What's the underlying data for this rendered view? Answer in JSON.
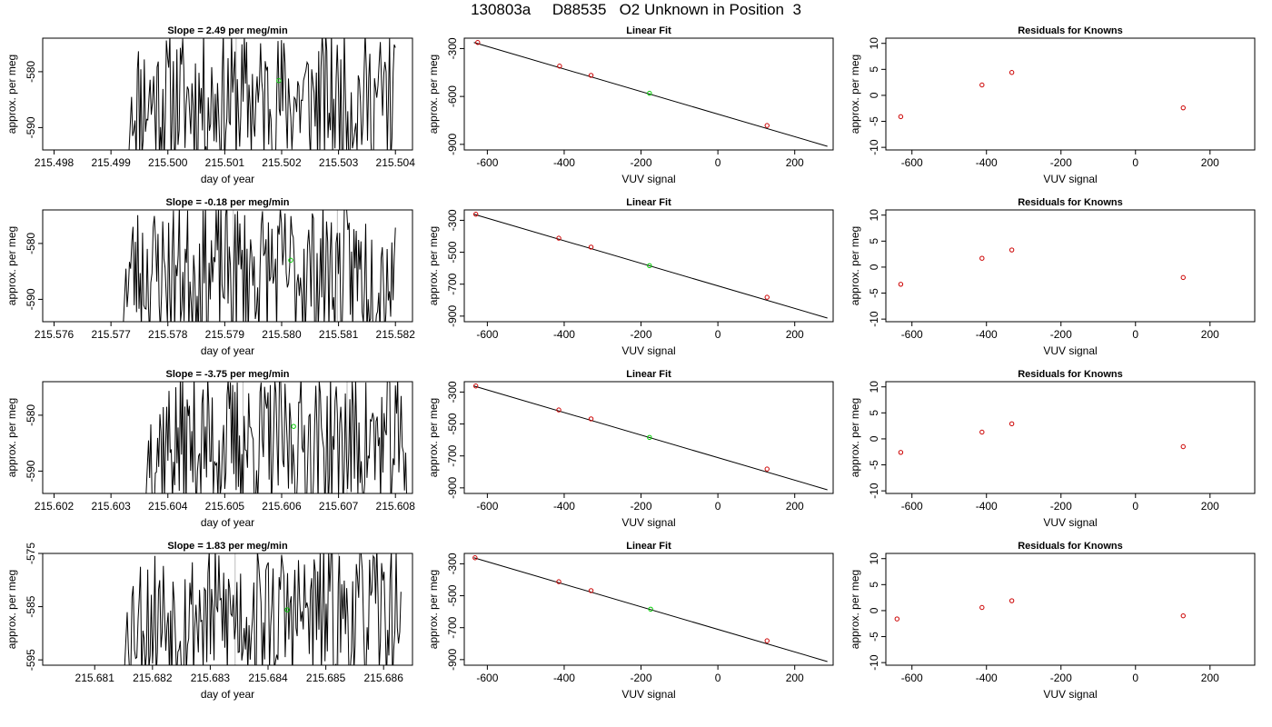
{
  "figure": {
    "title": "130803a     D88535   O2 Unknown in Position  3"
  },
  "colors": {
    "series": "#000000",
    "known_points": "#cc0000",
    "unknown_point": "#00cc00",
    "marker_lines": "#bbbbbb"
  },
  "chart_data": [
    {
      "type": "line",
      "title": "Slope =  2.49  per meg/min",
      "xlabel": "day of year",
      "ylabel": "approx. per meg",
      "xlim": [
        215.4978,
        215.5043
      ],
      "ylim": [
        -594,
        -574
      ],
      "x_ticks": [
        "215.498",
        "215.499",
        "215.500",
        "215.501",
        "215.502",
        "215.503",
        "215.504"
      ],
      "x_tick_values": [
        215.498,
        215.499,
        215.5,
        215.501,
        215.502,
        215.503,
        215.504
      ],
      "y_ticks": [
        "-590",
        "-580"
      ],
      "y_tick_values": [
        -590,
        -580
      ],
      "trace_x_range": [
        215.4993,
        215.504
      ],
      "marker_lines_x": [
        215.5012
      ],
      "unknown_point": [
        215.50195,
        -581.6
      ],
      "seed": 11
    },
    {
      "type": "scatter",
      "title": "Linear Fit",
      "xlabel": "VUV signal",
      "ylabel": "approx. per meg",
      "xlim": [
        -660,
        300
      ],
      "ylim": [
        -935,
        -235
      ],
      "x_ticks": [
        "-600",
        "-400",
        "-200",
        "0",
        "200"
      ],
      "x_tick_values": [
        -600,
        -400,
        -200,
        0,
        200
      ],
      "y_ticks": [
        "-900",
        "-600",
        "-300"
      ],
      "y_tick_values": [
        -900,
        -600,
        -300
      ],
      "fit_line": [
        [
          -635,
          -262
        ],
        [
          285,
          -912
        ]
      ],
      "knowns": [
        [
          -625,
          -262
        ],
        [
          -412,
          -410
        ],
        [
          -330,
          -468
        ],
        [
          128,
          -782
        ]
      ],
      "unknown": [
        -178,
        -580
      ]
    },
    {
      "type": "scatter",
      "title": "Residuals for Knowns",
      "xlabel": "VUV signal",
      "ylabel": "approx. per meg",
      "xlim": [
        -670,
        320
      ],
      "ylim": [
        -10.5,
        11
      ],
      "x_ticks": [
        "-600",
        "-400",
        "-200",
        "0",
        "200"
      ],
      "x_tick_values": [
        -600,
        -400,
        -200,
        0,
        200
      ],
      "y_ticks": [
        "-10",
        "-5",
        "0",
        "5",
        "10"
      ],
      "y_tick_values": [
        -10,
        -5,
        0,
        5,
        10
      ],
      "points": [
        [
          -630,
          -4.1
        ],
        [
          -412,
          2.0
        ],
        [
          -332,
          4.4
        ],
        [
          128,
          -2.4
        ]
      ]
    },
    {
      "type": "line",
      "title": "Slope =  -0.18  per meg/min",
      "xlabel": "day of year",
      "ylabel": "approx. per meg",
      "xlim": [
        215.5758,
        215.5823
      ],
      "ylim": [
        -594,
        -574
      ],
      "x_ticks": [
        "215.576",
        "215.577",
        "215.578",
        "215.579",
        "215.580",
        "215.581",
        "215.582"
      ],
      "x_tick_values": [
        215.576,
        215.577,
        215.578,
        215.579,
        215.58,
        215.581,
        215.582
      ],
      "y_ticks": [
        "-590",
        "-580"
      ],
      "y_tick_values": [
        -590,
        -580
      ],
      "trace_x_range": [
        215.5772,
        215.582
      ],
      "marker_lines_x": [
        215.57915,
        215.58098
      ],
      "unknown_point": [
        215.58016,
        -583.0
      ],
      "seed": 23
    },
    {
      "type": "scatter",
      "title": "Linear Fit",
      "xlabel": "VUV signal",
      "ylabel": "approx. per meg",
      "xlim": [
        -660,
        300
      ],
      "ylim": [
        -935,
        -235
      ],
      "x_ticks": [
        "-600",
        "-400",
        "-200",
        "0",
        "200"
      ],
      "x_tick_values": [
        -600,
        -400,
        -200,
        0,
        200
      ],
      "y_ticks": [
        "-900",
        "-700",
        "-500",
        "-300"
      ],
      "y_tick_values": [
        -900,
        -700,
        -500,
        -300
      ],
      "fit_line": [
        [
          -635,
          -262
        ],
        [
          285,
          -912
        ]
      ],
      "knowns": [
        [
          -630,
          -262
        ],
        [
          -414,
          -412
        ],
        [
          -330,
          -468
        ],
        [
          128,
          -782
        ]
      ],
      "unknown": [
        -178,
        -584
      ]
    },
    {
      "type": "scatter",
      "title": "Residuals for Knowns",
      "xlabel": "VUV signal",
      "ylabel": "approx. per meg",
      "xlim": [
        -670,
        320
      ],
      "ylim": [
        -10.5,
        11
      ],
      "x_ticks": [
        "-600",
        "-400",
        "-200",
        "0",
        "200"
      ],
      "x_tick_values": [
        -600,
        -400,
        -200,
        0,
        200
      ],
      "y_ticks": [
        "-10",
        "-5",
        "0",
        "5",
        "10"
      ],
      "y_tick_values": [
        -10,
        -5,
        0,
        5,
        10
      ],
      "points": [
        [
          -630,
          -3.3
        ],
        [
          -412,
          1.7
        ],
        [
          -332,
          3.3
        ],
        [
          128,
          -2.0
        ]
      ]
    },
    {
      "type": "line",
      "title": "Slope =  -3.75  per meg/min",
      "xlabel": "day of year",
      "ylabel": "approx. per meg",
      "xlim": [
        215.6018,
        215.6083
      ],
      "ylim": [
        -594,
        -574
      ],
      "x_ticks": [
        "215.602",
        "215.603",
        "215.604",
        "215.605",
        "215.606",
        "215.607",
        "215.608"
      ],
      "x_tick_values": [
        215.602,
        215.603,
        215.604,
        215.605,
        215.606,
        215.607,
        215.608
      ],
      "y_ticks": [
        "-590",
        "-580"
      ],
      "y_tick_values": [
        -590,
        -580
      ],
      "trace_x_range": [
        215.6036,
        215.6082
      ],
      "marker_lines_x": [
        215.60532,
        215.60715
      ],
      "unknown_point": [
        215.60621,
        -582.0
      ],
      "seed": 37
    },
    {
      "type": "scatter",
      "title": "Linear Fit",
      "xlabel": "VUV signal",
      "ylabel": "approx. per meg",
      "xlim": [
        -660,
        300
      ],
      "ylim": [
        -935,
        -235
      ],
      "x_ticks": [
        "-600",
        "-400",
        "-200",
        "0",
        "200"
      ],
      "x_tick_values": [
        -600,
        -400,
        -200,
        0,
        200
      ],
      "y_ticks": [
        "-900",
        "-700",
        "-500",
        "-300"
      ],
      "y_tick_values": [
        -900,
        -700,
        -500,
        -300
      ],
      "fit_line": [
        [
          -635,
          -262
        ],
        [
          285,
          -912
        ]
      ],
      "knowns": [
        [
          -630,
          -262
        ],
        [
          -414,
          -412
        ],
        [
          -330,
          -468
        ],
        [
          128,
          -782
        ]
      ],
      "unknown": [
        -178,
        -584
      ]
    },
    {
      "type": "scatter",
      "title": "Residuals for Knowns",
      "xlabel": "VUV signal",
      "ylabel": "approx. per meg",
      "xlim": [
        -670,
        320
      ],
      "ylim": [
        -10.5,
        11
      ],
      "x_ticks": [
        "-600",
        "-400",
        "-200",
        "0",
        "200"
      ],
      "x_tick_values": [
        -600,
        -400,
        -200,
        0,
        200
      ],
      "y_ticks": [
        "-10",
        "-5",
        "0",
        "5",
        "10"
      ],
      "y_tick_values": [
        -10,
        -5,
        0,
        5,
        10
      ],
      "points": [
        [
          -630,
          -2.6
        ],
        [
          -412,
          1.3
        ],
        [
          -332,
          2.9
        ],
        [
          128,
          -1.5
        ]
      ]
    },
    {
      "type": "line",
      "title": "Slope =  1.83  per meg/min",
      "xlabel": "day of year",
      "ylabel": "approx. per meg",
      "xlim": [
        215.6801,
        215.6865
      ],
      "ylim": [
        -596,
        -575
      ],
      "x_ticks": [
        "215.681",
        "215.682",
        "215.683",
        "215.684",
        "215.685",
        "215.686"
      ],
      "x_tick_values": [
        215.681,
        215.682,
        215.683,
        215.684,
        215.685,
        215.686
      ],
      "y_ticks": [
        "-595",
        "-585",
        "-575"
      ],
      "y_tick_values": [
        -595,
        -585,
        -575
      ],
      "trace_x_range": [
        215.6815,
        215.6863
      ],
      "marker_lines_x": [
        215.68343,
        215.68522
      ],
      "unknown_point": [
        215.68433,
        -585.6
      ],
      "seed": 53
    },
    {
      "type": "scatter",
      "title": "Linear Fit",
      "xlabel": "VUV signal",
      "ylabel": "approx. per meg",
      "xlim": [
        -660,
        300
      ],
      "ylim": [
        -935,
        -235
      ],
      "x_ticks": [
        "-600",
        "-400",
        "-200",
        "0",
        "200"
      ],
      "x_tick_values": [
        -600,
        -400,
        -200,
        0,
        200
      ],
      "y_ticks": [
        "-900",
        "-700",
        "-500",
        "-300"
      ],
      "y_tick_values": [
        -900,
        -700,
        -500,
        -300
      ],
      "fit_line": [
        [
          -635,
          -262
        ],
        [
          285,
          -912
        ]
      ],
      "knowns": [
        [
          -632,
          -262
        ],
        [
          -414,
          -412
        ],
        [
          -330,
          -468
        ],
        [
          128,
          -782
        ]
      ],
      "unknown": [
        -175,
        -584
      ]
    },
    {
      "type": "scatter",
      "title": "Residuals for Knowns",
      "xlabel": "VUV signal",
      "ylabel": "approx. per meg",
      "xlim": [
        -670,
        320
      ],
      "ylim": [
        -10.5,
        11
      ],
      "x_ticks": [
        "-600",
        "-400",
        "-200",
        "0",
        "200"
      ],
      "x_tick_values": [
        -600,
        -400,
        -200,
        0,
        200
      ],
      "y_ticks": [
        "-10",
        "-5",
        "0",
        "5",
        "10"
      ],
      "y_tick_values": [
        -10,
        -5,
        0,
        5,
        10
      ],
      "points": [
        [
          -640,
          -1.6
        ],
        [
          -412,
          0.6
        ],
        [
          -332,
          1.9
        ],
        [
          128,
          -1.0
        ]
      ]
    }
  ]
}
